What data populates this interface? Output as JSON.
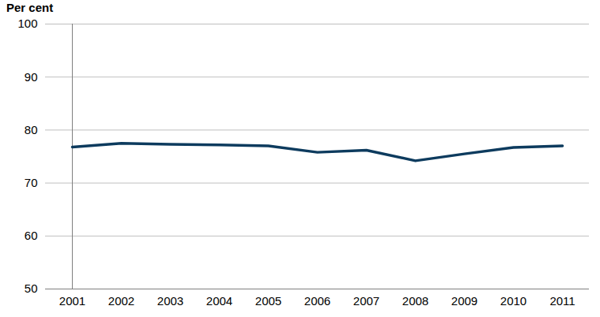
{
  "chart_data": {
    "type": "line",
    "y_label": "Per cent",
    "categories": [
      "2001",
      "2002",
      "2003",
      "2004",
      "2005",
      "2006",
      "2007",
      "2008",
      "2009",
      "2010",
      "2011"
    ],
    "values": [
      76.8,
      77.5,
      77.3,
      77.2,
      77.0,
      75.8,
      76.2,
      74.2,
      75.5,
      76.7,
      77.0
    ],
    "color": "#0d3b5e",
    "ylim": [
      50,
      100
    ],
    "yticks": [
      50,
      60,
      70,
      80,
      90,
      100
    ],
    "grid": true
  }
}
